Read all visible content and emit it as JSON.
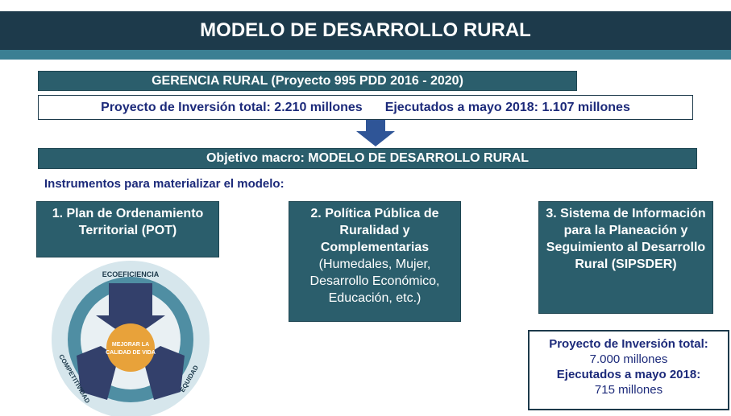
{
  "header": {
    "title": "MODELO DE DESARROLLO RURAL"
  },
  "program": {
    "title": "GERENCIA RURAL (Proyecto 995 PDD 2016 - 2020)",
    "investment_total": "Proyecto de Inversión total: 2.210 millones",
    "executed": "Ejecutados a mayo 2018: 1.107 millones"
  },
  "objective": "Objetivo macro: MODELO DE DESARROLLO RURAL",
  "instruments": {
    "heading": "Instrumentos para materializar el modelo:",
    "items": [
      {
        "title": "1. Plan de Ordenamiento Territorial (POT)"
      },
      {
        "title": "2. Política Pública de Ruralidad y Complementarias",
        "detail": "(Humedales, Mujer, Desarrollo Económico, Educación, etc.)"
      },
      {
        "title": "3. Sistema de Información para la Planeación y Seguimiento al Desarrollo Rural (SIPSDER)"
      }
    ]
  },
  "sipsder_budget": {
    "total_label": "Proyecto de Inversión total:",
    "total_value": "7.000 millones",
    "executed_label": "Ejecutados a mayo 2018:",
    "executed_value": "715 millones"
  },
  "diagram": {
    "top": "ECOEFICIENCIA",
    "center_1": "MEJORAR LA",
    "center_2": "CALIDAD DE VIDA",
    "left": "COMPETITIVIDAD",
    "right": "EQUIDAD"
  }
}
